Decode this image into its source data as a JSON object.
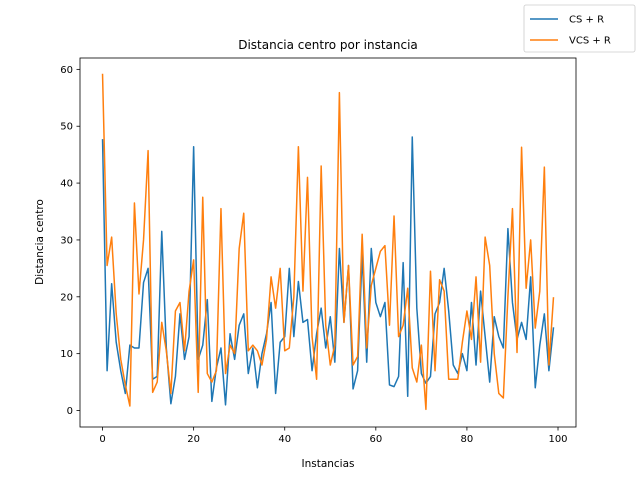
{
  "chart_data": {
    "type": "line",
    "title": "Distancia centro por instancia",
    "xlabel": "Instancias",
    "ylabel": "Distancia centro",
    "xlim": [
      -4.95,
      103.95
    ],
    "ylim": [
      -2.9,
      62.0
    ],
    "xticks": [
      0,
      20,
      40,
      60,
      80,
      100
    ],
    "yticks": [
      0,
      10,
      20,
      30,
      40,
      50,
      60
    ],
    "grid": false,
    "legend_position": "top-right",
    "series": [
      {
        "name": "CS + R",
        "color": "#1f77b4",
        "values": [
          47.6,
          7.0,
          22.3,
          12.0,
          7.0,
          3.0,
          11.5,
          11.0,
          11.0,
          22.5,
          25.0,
          5.5,
          6.0,
          31.5,
          11.0,
          1.2,
          6.0,
          17.0,
          9.0,
          13.0,
          46.4,
          9.0,
          11.5,
          19.5,
          1.6,
          7.5,
          11.0,
          1.0,
          13.5,
          9.0,
          15.0,
          17.0,
          6.5,
          11.0,
          4.0,
          10.0,
          13.5,
          19.0,
          3.0,
          12.0,
          13.0,
          25.0,
          13.0,
          22.7,
          15.5,
          16.0,
          7.0,
          13.5,
          18.0,
          11.0,
          16.5,
          8.5,
          28.5,
          15.5,
          25.5,
          3.8,
          7.0,
          27.5,
          8.5,
          28.5,
          19.0,
          16.5,
          19.0,
          4.5,
          4.2,
          6.0,
          26.0,
          2.5,
          48.1,
          18.0,
          6.5,
          4.8,
          6.0,
          17.0,
          19.0,
          25.0,
          17.5,
          8.0,
          6.5,
          10.0,
          7.0,
          19.0,
          8.0,
          21.0,
          13.0,
          5.0,
          16.5,
          13.0,
          11.0,
          32.0,
          19.0,
          12.5,
          15.5,
          12.5,
          23.5,
          4.0,
          11.5,
          17.0,
          7.0,
          14.5
        ]
      },
      {
        "name": "VCS + R",
        "color": "#ff7f0e",
        "values": [
          59.1,
          25.5,
          30.5,
          17.0,
          9.0,
          4.5,
          0.8,
          36.5,
          20.5,
          30.0,
          45.7,
          3.2,
          5.0,
          15.5,
          10.5,
          3.0,
          17.5,
          19.0,
          10.5,
          21.0,
          26.5,
          3.2,
          37.5,
          6.5,
          5.0,
          7.0,
          35.5,
          6.5,
          11.5,
          10.0,
          28.5,
          34.7,
          10.5,
          11.5,
          10.5,
          8.0,
          12.5,
          23.5,
          18.0,
          25.0,
          10.5,
          11.0,
          20.0,
          46.4,
          21.0,
          41.0,
          13.0,
          5.5,
          43.0,
          15.0,
          8.0,
          11.5,
          55.9,
          15.5,
          25.5,
          8.0,
          9.5,
          31.0,
          11.0,
          22.0,
          25.0,
          28.0,
          29.0,
          15.0,
          34.2,
          13.0,
          15.0,
          21.5,
          7.5,
          5.0,
          11.5,
          0.2,
          24.5,
          7.0,
          23.0,
          21.0,
          5.5,
          5.5,
          5.5,
          12.0,
          17.5,
          12.5,
          23.5,
          8.5,
          30.5,
          25.5,
          10.0,
          3.0,
          2.2,
          20.0,
          35.5,
          10.2,
          46.3,
          21.5,
          30.0,
          14.5,
          21.0,
          42.8,
          8.0,
          19.8
        ]
      }
    ]
  }
}
